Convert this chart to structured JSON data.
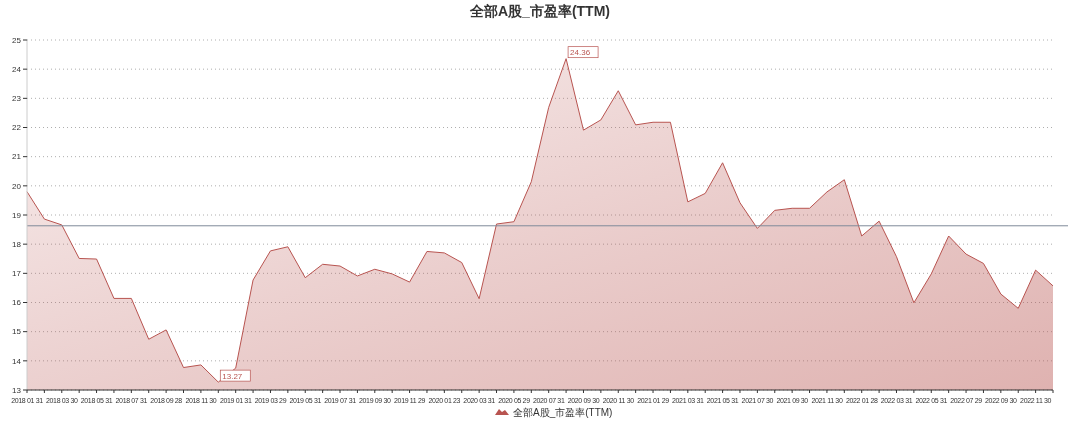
{
  "chart_data": {
    "type": "area",
    "title": "全部A股_市盈率(TTM)",
    "categories": [
      "2018 01 31",
      null,
      "2018 03 30",
      null,
      "2018 05 31",
      null,
      "2018 07 31",
      null,
      "2018 09 28",
      null,
      "2018 11 30",
      null,
      "2019 01 31",
      null,
      "2019 03 29",
      null,
      "2019 05 31",
      null,
      "2019 07 31",
      null,
      "2019 09 30",
      null,
      "2019 11 29",
      null,
      "2020 01 23",
      null,
      "2020 03 31",
      null,
      "2020 05 29",
      null,
      "2020 07 31",
      null,
      "2020 09 30",
      null,
      "2020 11 30",
      null,
      "2021 01 29",
      null,
      "2021 03 31",
      null,
      "2021 05 31",
      null,
      "2021 07 30",
      null,
      "2021 09 30",
      null,
      "2021 11 30",
      null,
      "2022 01 28",
      null,
      "2022 03 31",
      null,
      "2022 05 31",
      null,
      "2022 07 29",
      null,
      "2022 09 30",
      null,
      "2022 11 30",
      null
    ],
    "series": [
      {
        "name": "全部A股_市盈率(TTM)",
        "color": "#b85450",
        "values": [
          19.8,
          18.86,
          18.66,
          17.51,
          17.49,
          16.14,
          16.14,
          14.74,
          15.06,
          13.77,
          13.86,
          13.27,
          13.75,
          16.77,
          17.77,
          17.91,
          16.85,
          17.31,
          17.25,
          16.91,
          17.14,
          16.98,
          16.7,
          17.75,
          17.7,
          17.37,
          16.13,
          18.69,
          18.77,
          20.14,
          22.69,
          24.36,
          21.91,
          22.26,
          23.26,
          22.09,
          22.18,
          22.18,
          19.45,
          19.74,
          20.79,
          19.42,
          18.54,
          19.16,
          19.23,
          19.23,
          19.79,
          20.21,
          18.28,
          18.79,
          17.57,
          15.99,
          16.98,
          18.28,
          17.66,
          17.34,
          16.29,
          15.8,
          17.11,
          16.57
        ]
      }
    ],
    "ylim": [
      13,
      25
    ],
    "yticks": [
      13,
      14,
      15,
      16,
      17,
      18,
      19,
      20,
      21,
      22,
      23,
      24,
      25
    ],
    "grid": "y",
    "legend": "bottom",
    "ref_lines": [
      {
        "axis": "y",
        "value": 18.63,
        "color": "#7f8a9a"
      }
    ],
    "annotations": [
      "13.27",
      "24.36"
    ]
  }
}
